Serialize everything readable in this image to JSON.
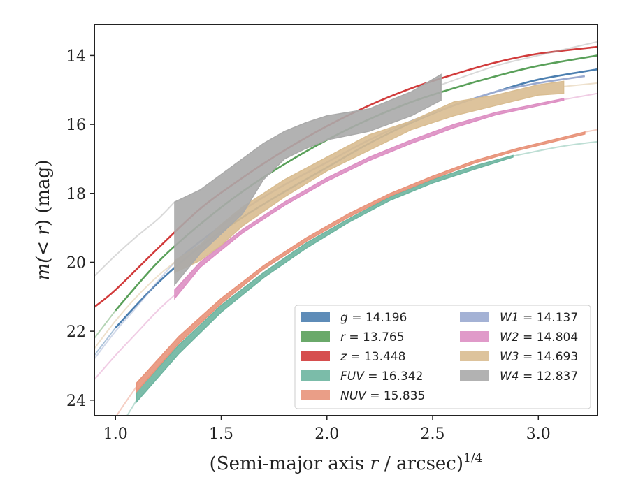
{
  "chart_data": {
    "type": "line",
    "xlabel_main": "(Semi-major axis ",
    "xlabel_var": "r",
    "xlabel_tail": " / arcsec)",
    "xlabel_exp": "1/4",
    "ylabel_pre": "m(",
    "ylabel_var": "< r",
    "ylabel_post": ") (mag)",
    "xlim": [
      0.9,
      3.28
    ],
    "ylim": [
      24.45,
      13.1
    ],
    "y_inverted": true,
    "xticks": [
      "1.0",
      "1.5",
      "2.0",
      "2.5",
      "3.0"
    ],
    "xtick_values": [
      1.0,
      1.5,
      2.0,
      2.5,
      3.0
    ],
    "yticks": [
      "14",
      "16",
      "18",
      "20",
      "22",
      "24"
    ],
    "ytick_values": [
      14,
      16,
      18,
      20,
      22,
      24
    ],
    "grid": false,
    "legend_position": "lower-right",
    "series": [
      {
        "name": "g",
        "total": "14.196",
        "color": "#4c7fb0",
        "kind": "line",
        "x": [
          1.0,
          1.2,
          1.4,
          1.6,
          1.8,
          2.0,
          2.2,
          2.4,
          2.6,
          2.8,
          3.0,
          3.28
        ],
        "y": [
          21.9,
          20.6,
          19.55,
          18.7,
          17.95,
          17.25,
          16.55,
          15.95,
          15.45,
          15.05,
          14.7,
          14.4
        ],
        "faint_x": [
          0.9,
          1.0
        ],
        "faint_y": [
          22.7,
          21.9
        ]
      },
      {
        "name": "r",
        "total": "13.765",
        "color": "#5aa05a",
        "kind": "line",
        "x": [
          1.0,
          1.2,
          1.4,
          1.6,
          1.8,
          2.0,
          2.2,
          2.4,
          2.6,
          2.8,
          3.0,
          3.28
        ],
        "y": [
          21.4,
          20.0,
          18.9,
          17.95,
          17.15,
          16.45,
          15.85,
          15.35,
          14.95,
          14.6,
          14.3,
          14.0
        ],
        "faint_x": [
          0.9,
          1.0
        ],
        "faint_y": [
          22.2,
          21.4
        ]
      },
      {
        "name": "z",
        "total": "13.448",
        "color": "#d13b3b",
        "kind": "line",
        "x": [
          0.9,
          1.0,
          1.2,
          1.4,
          1.6,
          1.8,
          2.0,
          2.2,
          2.4,
          2.6,
          2.8,
          3.0,
          3.28
        ],
        "y": [
          21.3,
          20.8,
          19.6,
          18.45,
          17.55,
          16.75,
          16.05,
          15.45,
          14.95,
          14.55,
          14.2,
          13.95,
          13.75
        ]
      },
      {
        "name": "FUV",
        "total": "16.342",
        "color": "#6db5a0",
        "kind": "band",
        "x": [
          1.1,
          1.3,
          1.5,
          1.7,
          1.9,
          2.1,
          2.3,
          2.5,
          2.7,
          2.88
        ],
        "ylow": [
          23.75,
          22.4,
          21.25,
          20.3,
          19.45,
          18.75,
          18.1,
          17.6,
          17.2,
          16.9
        ],
        "yhigh": [
          24.05,
          22.65,
          21.45,
          20.45,
          19.6,
          18.85,
          18.2,
          17.7,
          17.3,
          16.95
        ],
        "faint_x": [
          0.9,
          1.0,
          1.1,
          2.88,
          3.1,
          3.28
        ],
        "faint_y": [
          26.0,
          25.0,
          24.0,
          16.92,
          16.65,
          16.5
        ]
      },
      {
        "name": "NUV",
        "total": "15.835",
        "color": "#e8937a",
        "kind": "band",
        "x": [
          1.1,
          1.3,
          1.5,
          1.7,
          1.9,
          2.1,
          2.3,
          2.5,
          2.7,
          2.9,
          3.1,
          3.22
        ],
        "ylow": [
          23.5,
          22.15,
          21.05,
          20.1,
          19.3,
          18.6,
          18.0,
          17.5,
          17.05,
          16.7,
          16.4,
          16.22
        ],
        "yhigh": [
          23.75,
          22.35,
          21.2,
          20.2,
          19.4,
          18.7,
          18.08,
          17.58,
          17.12,
          16.76,
          16.46,
          16.28
        ],
        "faint_x": [
          0.9,
          1.0,
          1.1,
          3.22,
          3.28
        ],
        "faint_y": [
          25.5,
          24.5,
          23.6,
          16.22,
          16.15
        ]
      },
      {
        "name": "W1",
        "total": "14.137",
        "color": "#9aaad0",
        "kind": "line",
        "x": [
          1.28,
          1.4,
          1.6,
          1.8,
          2.0,
          2.2,
          2.4,
          2.6,
          2.8,
          3.0,
          3.22
        ],
        "y": [
          20.0,
          19.4,
          18.5,
          17.75,
          17.1,
          16.45,
          15.9,
          15.45,
          15.05,
          14.8,
          14.6
        ],
        "faint_x": [
          0.9,
          1.0,
          1.1,
          1.2,
          1.28
        ],
        "faint_y": [
          22.8,
          22.0,
          21.3,
          20.55,
          20.0
        ]
      },
      {
        "name": "W2",
        "total": "14.804",
        "color": "#dd8fc3",
        "kind": "band",
        "x": [
          1.28,
          1.4,
          1.6,
          1.8,
          2.0,
          2.2,
          2.4,
          2.6,
          2.8,
          3.0,
          3.12
        ],
        "ylow": [
          20.8,
          20.0,
          19.05,
          18.25,
          17.55,
          16.95,
          16.45,
          16.0,
          15.65,
          15.4,
          15.25
        ],
        "yhigh": [
          21.05,
          20.15,
          19.15,
          18.35,
          17.65,
          17.05,
          16.55,
          16.1,
          15.72,
          15.46,
          15.3
        ],
        "faint_x": [
          0.9,
          1.0,
          1.1,
          1.2,
          1.28,
          3.12,
          3.28
        ],
        "faint_y": [
          23.4,
          22.7,
          22.05,
          21.4,
          20.95,
          15.28,
          15.1
        ]
      },
      {
        "name": "W3",
        "total": "14.693",
        "color": "#d9bd91",
        "kind": "band",
        "x": [
          1.28,
          1.4,
          1.5,
          1.6,
          1.8,
          2.0,
          2.2,
          2.4,
          2.6,
          2.8,
          3.0,
          3.12
        ],
        "ylow": [
          19.95,
          19.5,
          18.9,
          18.4,
          17.6,
          16.95,
          16.3,
          15.9,
          15.35,
          15.15,
          14.85,
          14.75
        ],
        "yhigh": [
          20.3,
          19.95,
          19.5,
          18.95,
          18.1,
          17.35,
          16.75,
          16.15,
          15.75,
          15.45,
          15.15,
          15.1
        ],
        "faint_x": [
          0.9,
          1.0,
          1.1,
          1.2,
          1.28,
          3.12,
          3.28
        ],
        "faint_y": [
          22.5,
          21.7,
          21.0,
          20.4,
          20.0,
          14.9,
          14.8
        ]
      },
      {
        "name": "W4",
        "total": "12.837",
        "color": "#aaaaaa",
        "kind": "band",
        "x": [
          1.28,
          1.4,
          1.6,
          1.7,
          1.8,
          1.9,
          2.0,
          2.2,
          2.4,
          2.54
        ],
        "ylow": [
          18.25,
          17.9,
          17.0,
          16.55,
          16.2,
          15.95,
          15.75,
          15.55,
          15.05,
          14.55
        ],
        "yhigh": [
          20.65,
          19.75,
          18.6,
          17.6,
          17.0,
          16.7,
          16.45,
          16.2,
          15.75,
          15.3
        ],
        "faint_x": [
          0.9,
          1.0,
          1.1,
          1.2,
          1.28,
          2.54,
          2.8,
          3.0,
          3.28
        ],
        "faint_y": [
          20.4,
          19.8,
          19.25,
          18.75,
          18.25,
          14.85,
          14.3,
          14.0,
          13.6
        ]
      }
    ]
  }
}
